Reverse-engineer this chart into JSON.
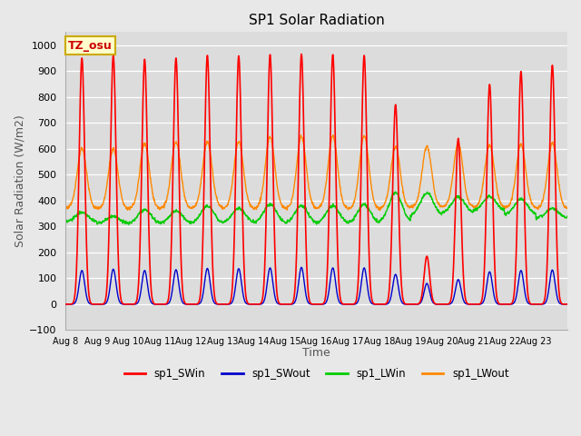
{
  "title": "SP1 Solar Radiation",
  "xlabel": "Time",
  "ylabel": "Solar Radiation (W/m2)",
  "ylim": [
    -100,
    1050
  ],
  "background_color": "#e8e8e8",
  "plot_bg_color": "#dcdcdc",
  "grid_color": "#ffffff",
  "tz_label": "TZ_osu",
  "tz_box_facecolor": "#ffffcc",
  "tz_box_edgecolor": "#ccaa00",
  "tz_text_color": "#cc0000",
  "legend_labels": [
    "sp1_SWin",
    "sp1_SWout",
    "sp1_LWin",
    "sp1_LWout"
  ],
  "legend_colors": [
    "#ff0000",
    "#0000cc",
    "#00cc00",
    "#ff8800"
  ],
  "x_tick_labels": [
    "Aug 8",
    "Aug 9",
    "Aug 10",
    "Aug 11",
    "Aug 12",
    "Aug 13",
    "Aug 14",
    "Aug 15",
    "Aug 16",
    "Aug 17",
    "Aug 18",
    "Aug 19",
    "Aug 20",
    "Aug 21",
    "Aug 22",
    "Aug 23"
  ],
  "num_days": 16,
  "pts_per_day": 96,
  "SWin_peaks": [
    950,
    960,
    945,
    950,
    960,
    958,
    963,
    965,
    963,
    960,
    770,
    185,
    640,
    848,
    898,
    922
  ],
  "SWout_peaks": [
    130,
    135,
    130,
    133,
    138,
    137,
    140,
    142,
    140,
    140,
    115,
    80,
    95,
    125,
    130,
    132
  ],
  "LWin_night": [
    315,
    310,
    310,
    312,
    312,
    312,
    310,
    310,
    310,
    310,
    315,
    340,
    350,
    360,
    345,
    330
  ],
  "LWin_day_peaks": [
    355,
    340,
    365,
    360,
    378,
    370,
    385,
    380,
    380,
    385,
    430,
    430,
    415,
    415,
    405,
    370
  ],
  "LWout_night": [
    370,
    368,
    370,
    370,
    372,
    370,
    370,
    370,
    370,
    368,
    370,
    375,
    375,
    375,
    373,
    370
  ],
  "LWout_day_peaks": [
    600,
    600,
    620,
    627,
    627,
    627,
    647,
    647,
    647,
    650,
    607,
    610,
    620,
    615,
    617,
    622
  ]
}
